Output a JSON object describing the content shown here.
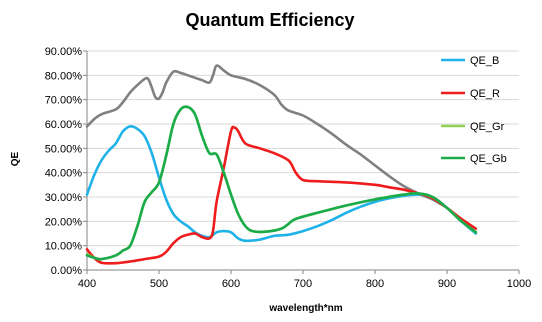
{
  "chart_data": {
    "type": "line",
    "title": "Quantum Efficiency",
    "xlabel": "wavelength*nm",
    "ylabel": "QE",
    "xlim": [
      400,
      1000
    ],
    "ylim": [
      0,
      0.9
    ],
    "x_ticks": [
      400,
      500,
      600,
      700,
      800,
      900,
      1000
    ],
    "x_tick_labels": [
      "400",
      "500",
      "600",
      "700",
      "800",
      "900",
      "1000"
    ],
    "y_ticks": [
      0,
      0.1,
      0.2,
      0.3,
      0.4,
      0.5,
      0.6,
      0.7,
      0.8,
      0.9
    ],
    "y_tick_labels": [
      "0.00%",
      "10.00%",
      "20.00%",
      "30.00%",
      "40.00%",
      "50.00%",
      "60.00%",
      "70.00%",
      "80.00%",
      "90.00%"
    ],
    "grid": "horizontal",
    "legend_position": "right",
    "series": [
      {
        "name": "QE_B",
        "color": "#1fb2e8",
        "points": [
          [
            400,
            0.31
          ],
          [
            410,
            0.39
          ],
          [
            420,
            0.45
          ],
          [
            430,
            0.49
          ],
          [
            440,
            0.52
          ],
          [
            450,
            0.57
          ],
          [
            460,
            0.59
          ],
          [
            470,
            0.58
          ],
          [
            480,
            0.55
          ],
          [
            490,
            0.48
          ],
          [
            500,
            0.38
          ],
          [
            510,
            0.29
          ],
          [
            520,
            0.23
          ],
          [
            530,
            0.2
          ],
          [
            540,
            0.18
          ],
          [
            550,
            0.155
          ],
          [
            560,
            0.14
          ],
          [
            570,
            0.135
          ],
          [
            580,
            0.155
          ],
          [
            590,
            0.16
          ],
          [
            600,
            0.155
          ],
          [
            610,
            0.13
          ],
          [
            620,
            0.12
          ],
          [
            640,
            0.125
          ],
          [
            660,
            0.14
          ],
          [
            680,
            0.145
          ],
          [
            700,
            0.16
          ],
          [
            720,
            0.18
          ],
          [
            740,
            0.205
          ],
          [
            760,
            0.235
          ],
          [
            780,
            0.26
          ],
          [
            800,
            0.28
          ],
          [
            820,
            0.295
          ],
          [
            840,
            0.305
          ],
          [
            860,
            0.31
          ],
          [
            880,
            0.3
          ],
          [
            900,
            0.255
          ],
          [
            920,
            0.2
          ],
          [
            940,
            0.15
          ]
        ]
      },
      {
        "name": "QE_R",
        "color": "#ee1c1c",
        "points": [
          [
            400,
            0.085
          ],
          [
            410,
            0.05
          ],
          [
            420,
            0.03
          ],
          [
            440,
            0.028
          ],
          [
            460,
            0.035
          ],
          [
            480,
            0.045
          ],
          [
            500,
            0.055
          ],
          [
            510,
            0.075
          ],
          [
            520,
            0.11
          ],
          [
            530,
            0.135
          ],
          [
            540,
            0.145
          ],
          [
            550,
            0.15
          ],
          [
            560,
            0.135
          ],
          [
            570,
            0.13
          ],
          [
            575,
            0.16
          ],
          [
            580,
            0.28
          ],
          [
            590,
            0.42
          ],
          [
            600,
            0.57
          ],
          [
            605,
            0.585
          ],
          [
            610,
            0.57
          ],
          [
            620,
            0.52
          ],
          [
            640,
            0.5
          ],
          [
            660,
            0.48
          ],
          [
            680,
            0.45
          ],
          [
            690,
            0.4
          ],
          [
            700,
            0.37
          ],
          [
            720,
            0.365
          ],
          [
            760,
            0.36
          ],
          [
            800,
            0.35
          ],
          [
            820,
            0.34
          ],
          [
            840,
            0.33
          ],
          [
            860,
            0.315
          ],
          [
            880,
            0.295
          ],
          [
            900,
            0.255
          ],
          [
            920,
            0.21
          ],
          [
            940,
            0.17
          ]
        ]
      },
      {
        "name": "QE_Gr",
        "color": "#92d050",
        "points": [
          [
            400,
            0.065
          ],
          [
            410,
            0.05
          ],
          [
            420,
            0.045
          ],
          [
            440,
            0.06
          ],
          [
            450,
            0.08
          ],
          [
            460,
            0.1
          ],
          [
            470,
            0.18
          ],
          [
            480,
            0.28
          ],
          [
            490,
            0.32
          ],
          [
            500,
            0.36
          ],
          [
            510,
            0.47
          ],
          [
            520,
            0.6
          ],
          [
            530,
            0.66
          ],
          [
            540,
            0.67
          ],
          [
            550,
            0.64
          ],
          [
            560,
            0.55
          ],
          [
            570,
            0.48
          ],
          [
            580,
            0.475
          ],
          [
            590,
            0.4
          ],
          [
            600,
            0.31
          ],
          [
            610,
            0.23
          ],
          [
            620,
            0.18
          ],
          [
            630,
            0.16
          ],
          [
            650,
            0.158
          ],
          [
            670,
            0.17
          ],
          [
            680,
            0.19
          ],
          [
            690,
            0.21
          ],
          [
            720,
            0.235
          ],
          [
            760,
            0.265
          ],
          [
            800,
            0.29
          ],
          [
            840,
            0.31
          ],
          [
            860,
            0.315
          ],
          [
            880,
            0.3
          ],
          [
            900,
            0.255
          ],
          [
            920,
            0.2
          ],
          [
            940,
            0.155
          ]
        ]
      },
      {
        "name": "QE_Gb",
        "color": "#1aab4a",
        "points": [
          [
            400,
            0.06
          ],
          [
            410,
            0.05
          ],
          [
            420,
            0.045
          ],
          [
            440,
            0.06
          ],
          [
            450,
            0.08
          ],
          [
            460,
            0.1
          ],
          [
            470,
            0.18
          ],
          [
            480,
            0.28
          ],
          [
            490,
            0.32
          ],
          [
            500,
            0.36
          ],
          [
            510,
            0.47
          ],
          [
            520,
            0.6
          ],
          [
            530,
            0.66
          ],
          [
            540,
            0.67
          ],
          [
            550,
            0.64
          ],
          [
            560,
            0.55
          ],
          [
            570,
            0.48
          ],
          [
            580,
            0.475
          ],
          [
            590,
            0.4
          ],
          [
            600,
            0.31
          ],
          [
            610,
            0.23
          ],
          [
            620,
            0.18
          ],
          [
            630,
            0.16
          ],
          [
            650,
            0.158
          ],
          [
            670,
            0.17
          ],
          [
            680,
            0.19
          ],
          [
            690,
            0.21
          ],
          [
            720,
            0.235
          ],
          [
            760,
            0.265
          ],
          [
            800,
            0.29
          ],
          [
            840,
            0.31
          ],
          [
            860,
            0.315
          ],
          [
            880,
            0.3
          ],
          [
            900,
            0.255
          ],
          [
            920,
            0.2
          ],
          [
            940,
            0.155
          ]
        ]
      },
      {
        "name": "",
        "color": "#808080",
        "points": [
          [
            400,
            0.59
          ],
          [
            410,
            0.62
          ],
          [
            420,
            0.64
          ],
          [
            440,
            0.66
          ],
          [
            450,
            0.69
          ],
          [
            460,
            0.73
          ],
          [
            470,
            0.76
          ],
          [
            480,
            0.785
          ],
          [
            485,
            0.785
          ],
          [
            490,
            0.75
          ],
          [
            495,
            0.71
          ],
          [
            500,
            0.705
          ],
          [
            505,
            0.73
          ],
          [
            510,
            0.77
          ],
          [
            520,
            0.815
          ],
          [
            530,
            0.81
          ],
          [
            540,
            0.8
          ],
          [
            550,
            0.79
          ],
          [
            560,
            0.78
          ],
          [
            570,
            0.77
          ],
          [
            575,
            0.8
          ],
          [
            580,
            0.84
          ],
          [
            590,
            0.82
          ],
          [
            600,
            0.8
          ],
          [
            620,
            0.785
          ],
          [
            640,
            0.76
          ],
          [
            660,
            0.72
          ],
          [
            670,
            0.68
          ],
          [
            680,
            0.655
          ],
          [
            700,
            0.635
          ],
          [
            720,
            0.6
          ],
          [
            740,
            0.56
          ],
          [
            760,
            0.515
          ],
          [
            780,
            0.475
          ],
          [
            800,
            0.43
          ],
          [
            820,
            0.385
          ],
          [
            840,
            0.345
          ],
          [
            860,
            0.315
          ],
          [
            880,
            0.29
          ],
          [
            900,
            0.255
          ],
          [
            920,
            0.205
          ],
          [
            940,
            0.155
          ]
        ]
      }
    ]
  }
}
